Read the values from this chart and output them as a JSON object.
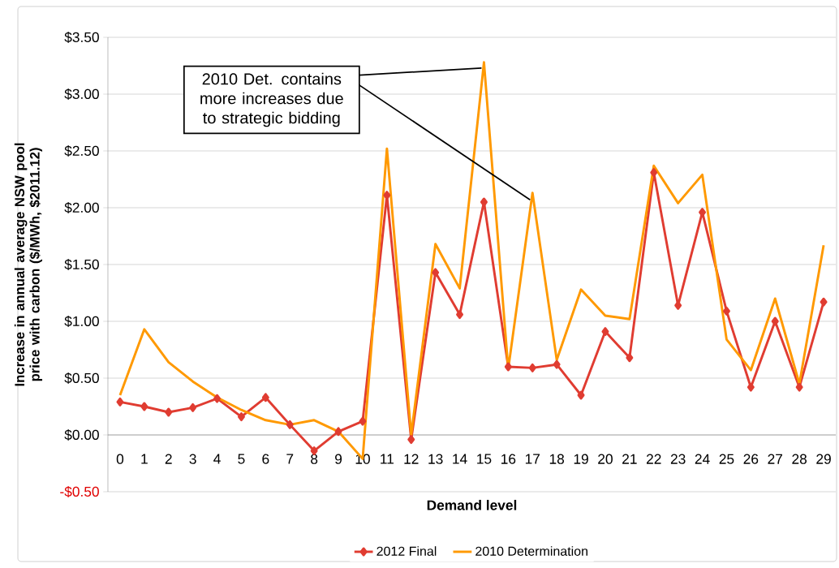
{
  "chart_data": {
    "type": "line",
    "xlabel": "Demand level",
    "ylabel": "Increase in annual average NSW pool price with carbon ($/MWh, $2011.12)",
    "categories": [
      "0",
      "1",
      "2",
      "3",
      "4",
      "5",
      "6",
      "7",
      "8",
      "9",
      "10",
      "11",
      "12",
      "13",
      "14",
      "15",
      "16",
      "17",
      "18",
      "19",
      "20",
      "21",
      "22",
      "23",
      "24",
      "25",
      "26",
      "27",
      "28",
      "29"
    ],
    "series": [
      {
        "name": "2012 Final",
        "color": "#e03c31",
        "marker": "diamond",
        "values": [
          0.29,
          0.25,
          0.2,
          0.24,
          0.32,
          0.16,
          0.33,
          0.09,
          -0.14,
          0.03,
          0.12,
          2.11,
          -0.04,
          1.43,
          1.06,
          2.05,
          0.6,
          0.59,
          0.62,
          0.35,
          0.91,
          0.68,
          2.31,
          1.14,
          1.96,
          1.09,
          0.42,
          1.0,
          0.42,
          1.17
        ]
      },
      {
        "name": "2010 Determination",
        "color": "#ff9900",
        "marker": "none",
        "values": [
          0.35,
          0.93,
          0.64,
          0.47,
          0.33,
          0.22,
          0.13,
          0.09,
          0.13,
          0.03,
          -0.21,
          2.52,
          0.0,
          1.68,
          1.29,
          3.28,
          0.58,
          2.13,
          0.66,
          1.28,
          1.05,
          1.02,
          2.37,
          2.04,
          2.29,
          0.84,
          0.57,
          1.2,
          0.45,
          1.67
        ]
      }
    ],
    "ylim": [
      -0.5,
      3.5
    ],
    "yticks": [
      {
        "value": -0.5,
        "label": "-$0.50"
      },
      {
        "value": 0,
        "label": "$0.00"
      },
      {
        "value": 0.5,
        "label": "$0.50"
      },
      {
        "value": 1,
        "label": "$1.00"
      },
      {
        "value": 1.5,
        "label": "$1.50"
      },
      {
        "value": 2,
        "label": "$2.00"
      },
      {
        "value": 2.5,
        "label": "$2.50"
      },
      {
        "value": 3,
        "label": "$3.00"
      },
      {
        "value": 3.5,
        "label": "$3.50"
      }
    ],
    "grid": "y",
    "legend": "bottom",
    "annotations": [
      {
        "text": "2010 Det. contains more increases due to strategic bidding",
        "x": "15",
        "y": 3.28
      }
    ]
  }
}
